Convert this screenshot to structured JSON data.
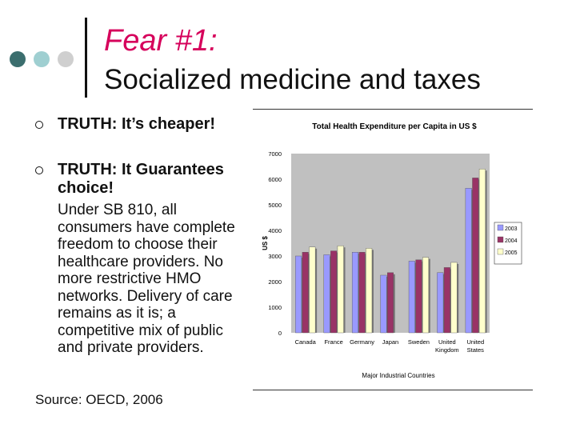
{
  "header": {
    "title_line1": "Fear #1:",
    "title_line2": "Socialized medicine and taxes",
    "dot_colors": [
      "#3b6e6e",
      "#9fcfd1",
      "#cfcfcf"
    ]
  },
  "bullets": [
    {
      "prefix": "TRUTH:",
      "text": "It’s cheaper!"
    },
    {
      "prefix": "TRUTH:",
      "text": "It Guarantees choice!"
    }
  ],
  "body_text": "Under SB 810, all consumers have complete freedom to choose their healthcare providers. No more restrictive HMO networks. Delivery of care remains as it is; a competitive mix of public and private providers.",
  "source": "Source: OECD, 2006",
  "chart_data": {
    "type": "bar",
    "title": "Total Health Expenditure per Capita in US $",
    "xlabel": "Major Industrial Countries",
    "ylabel": "US $",
    "ylim": [
      0,
      7000
    ],
    "yticks": [
      0,
      1000,
      2000,
      3000,
      4000,
      5000,
      6000,
      7000
    ],
    "categories": [
      "Canada",
      "France",
      "Germany",
      "Japan",
      "Sweden",
      "United Kingdom",
      "United States"
    ],
    "series": [
      {
        "name": "2003",
        "color": "#9999ff",
        "values": [
          3000,
          3050,
          3150,
          2250,
          2800,
          2350,
          5650
        ]
      },
      {
        "name": "2004",
        "color": "#993366",
        "values": [
          3150,
          3200,
          3150,
          2350,
          2850,
          2550,
          6050
        ]
      },
      {
        "name": "2005",
        "color": "#ffffcc",
        "values": [
          3350,
          3400,
          3300,
          0,
          2950,
          2750,
          6400
        ]
      }
    ],
    "legend": "right",
    "grid": false,
    "background": "#c0c0c0"
  }
}
